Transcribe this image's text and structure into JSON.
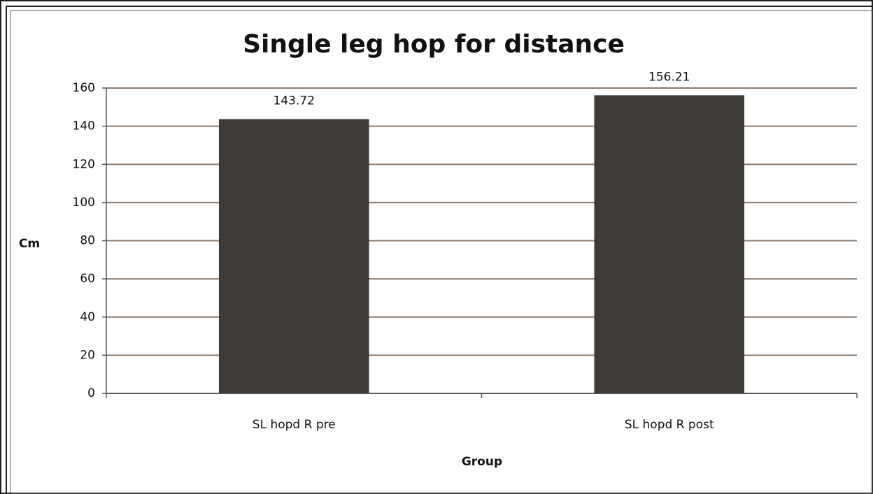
{
  "chart_data": {
    "type": "bar",
    "title": "Single leg hop for distance",
    "x_label": "Group",
    "y_label": "Cm",
    "categories": [
      "SL hopd R pre",
      "SL hopd R post"
    ],
    "values": [
      143.72,
      156.21
    ],
    "color": "#3d3a38",
    "ylim": [
      0,
      160
    ],
    "yticks": [
      0,
      20,
      40,
      60,
      80,
      100,
      120,
      140,
      160
    ],
    "grid": true
  }
}
